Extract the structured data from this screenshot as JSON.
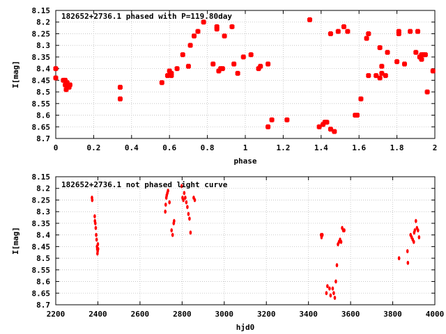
{
  "chart_data": [
    {
      "type": "scatter",
      "title": "182652+2736.1 phased with P=119.80day",
      "xlabel": "phase",
      "ylabel": "I[mag]",
      "xlim": [
        0,
        2
      ],
      "ylim": [
        8.7,
        8.15
      ],
      "y_inverted": true,
      "grid": true,
      "xticks": [
        "0",
        "0.2",
        "0.4",
        "0.6",
        "0.8",
        "1",
        "1.2",
        "1.4",
        "1.6",
        "1.8",
        "2"
      ],
      "xtick_values": [
        0,
        0.2,
        0.4,
        0.6,
        0.8,
        1.0,
        1.2,
        1.4,
        1.6,
        1.8,
        2.0
      ],
      "yticks": [
        "8.15",
        "8.2",
        "8.25",
        "8.3",
        "8.35",
        "8.4",
        "8.45",
        "8.5",
        "8.55",
        "8.6",
        "8.65",
        "8.7"
      ],
      "ytick_values": [
        8.15,
        8.2,
        8.25,
        8.3,
        8.35,
        8.4,
        8.45,
        8.5,
        8.55,
        8.6,
        8.65,
        8.7
      ],
      "marker_color": "#ff0000",
      "marker": "filled-square",
      "series": [
        {
          "x": [
            0.0,
            0.0,
            0.04,
            0.05,
            0.05,
            0.06,
            0.07,
            0.055,
            0.075,
            0.34,
            0.34,
            0.56,
            0.59,
            0.6,
            0.61,
            0.61,
            0.64,
            0.67,
            0.7,
            0.71,
            0.73,
            0.75,
            0.78,
            0.83,
            0.85,
            0.85,
            0.86,
            0.87,
            0.88,
            0.89,
            0.93,
            0.94,
            0.96,
            0.99,
            1.03,
            1.07,
            1.08,
            1.12,
            1.12,
            1.14,
            1.22,
            1.34,
            1.39,
            1.41,
            1.42,
            1.43,
            1.45,
            1.45,
            1.47,
            1.49,
            1.52,
            1.54,
            1.58,
            1.59,
            1.61,
            1.64,
            1.65,
            1.65,
            1.69,
            1.71,
            1.71,
            1.72,
            1.72,
            1.74,
            1.75,
            1.8,
            1.81,
            1.81,
            1.84,
            1.87,
            1.9,
            1.91,
            1.92,
            1.93,
            1.93,
            1.94,
            1.95,
            1.96,
            1.99
          ],
          "y": [
            8.4,
            8.44,
            8.45,
            8.45,
            8.47,
            8.46,
            8.48,
            8.49,
            8.47,
            8.48,
            8.53,
            8.46,
            8.43,
            8.41,
            8.42,
            8.43,
            8.4,
            8.34,
            8.39,
            8.3,
            8.26,
            8.24,
            8.2,
            8.38,
            8.22,
            8.23,
            8.41,
            8.4,
            8.4,
            8.26,
            8.22,
            8.38,
            8.42,
            8.35,
            8.34,
            8.4,
            8.39,
            8.38,
            8.65,
            8.62,
            8.62,
            8.19,
            8.65,
            8.64,
            8.63,
            8.63,
            8.66,
            8.25,
            8.67,
            8.24,
            8.22,
            8.24,
            8.6,
            8.6,
            8.53,
            8.27,
            8.25,
            8.43,
            8.43,
            8.44,
            8.31,
            8.39,
            8.42,
            8.43,
            8.33,
            8.37,
            8.24,
            8.25,
            8.38,
            8.24,
            8.33,
            8.24,
            8.35,
            8.36,
            8.34,
            8.34,
            8.34,
            8.5,
            8.41
          ]
        }
      ]
    },
    {
      "type": "scatter",
      "title": "182652+2736.1 not phased light curve",
      "xlabel": "hjd0",
      "ylabel": "I[mag]",
      "xlim": [
        2200,
        4000
      ],
      "ylim": [
        8.7,
        8.15
      ],
      "y_inverted": true,
      "grid": true,
      "xticks": [
        "2200",
        "2400",
        "2600",
        "2800",
        "3000",
        "3200",
        "3400",
        "3600",
        "3800",
        "4000"
      ],
      "xtick_values": [
        2200,
        2400,
        2600,
        2800,
        3000,
        3200,
        3400,
        3600,
        3800,
        4000
      ],
      "yticks": [
        "8.15",
        "8.2",
        "8.25",
        "8.3",
        "8.35",
        "8.4",
        "8.45",
        "8.5",
        "8.55",
        "8.6",
        "8.65",
        "8.7"
      ],
      "ytick_values": [
        8.15,
        8.2,
        8.25,
        8.3,
        8.35,
        8.4,
        8.45,
        8.5,
        8.55,
        8.6,
        8.65,
        8.7
      ],
      "marker_color": "#ff0000",
      "marker": "small-diamond",
      "series": [
        {
          "x": [
            2372,
            2373,
            2385,
            2386,
            2388,
            2390,
            2392,
            2394,
            2396,
            2397,
            2398,
            2399,
            2400,
            2401,
            2720,
            2722,
            2725,
            2727,
            2730,
            2733,
            2740,
            2750,
            2755,
            2760,
            2762,
            2798,
            2802,
            2806,
            2810,
            2815,
            2820,
            2825,
            2830,
            2835,
            2840,
            2855,
            2860,
            3460,
            3462,
            3466,
            3485,
            3490,
            3500,
            3505,
            3515,
            3520,
            3525,
            3530,
            3535,
            3540,
            3545,
            3550,
            3555,
            3560,
            3565,
            3570,
            3830,
            3870,
            3872,
            3885,
            3890,
            3895,
            3900,
            3902,
            3905,
            3910,
            3915,
            3920,
            3925
          ],
          "y": [
            8.24,
            8.25,
            8.32,
            8.34,
            8.35,
            8.37,
            8.4,
            8.42,
            8.45,
            8.46,
            8.48,
            8.47,
            8.44,
            8.46,
            8.3,
            8.27,
            8.24,
            8.23,
            8.22,
            8.21,
            8.26,
            8.38,
            8.4,
            8.35,
            8.34,
            8.19,
            8.24,
            8.25,
            8.22,
            8.24,
            8.26,
            8.28,
            8.31,
            8.33,
            8.39,
            8.24,
            8.25,
            8.4,
            8.41,
            8.4,
            8.65,
            8.62,
            8.63,
            8.66,
            8.63,
            8.65,
            8.67,
            8.6,
            8.53,
            8.44,
            8.43,
            8.42,
            8.43,
            8.37,
            8.38,
            8.38,
            8.5,
            8.47,
            8.52,
            8.4,
            8.41,
            8.42,
            8.43,
            8.39,
            8.38,
            8.34,
            8.37,
            8.38,
            8.41
          ]
        }
      ]
    }
  ]
}
